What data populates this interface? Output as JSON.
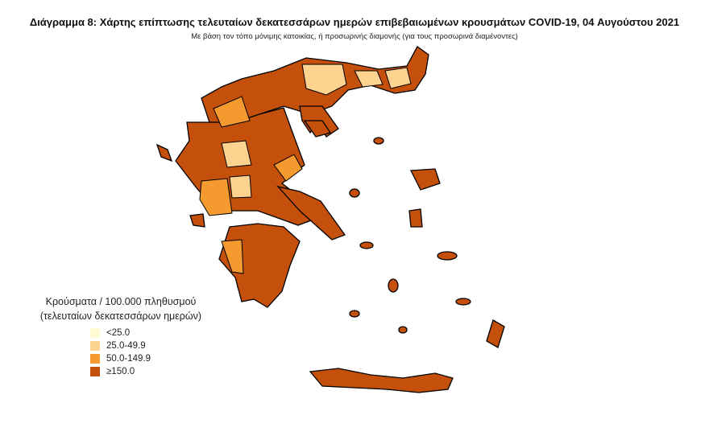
{
  "title": "Διάγραμμα 8: Χάρτης επίπτωσης τελευταίων δεκατεσσάρων ημερών επιβεβαιωμένων κρουσμάτων COVID-19, 04 Αυγούστου 2021",
  "subtitle": "Με βάση τον τόπο μόνιμης κατοικίας, ή προσωρινής διαμονής (για τους προσωρινά διαμένοντες)",
  "legend": {
    "title_line1": "Κρούσματα / 100.000 πληθυσμού",
    "title_line2": "(τελευταίων δεκατεσσάρων ημερών)",
    "items": [
      {
        "label": "<25.0",
        "color": "#fffbd2"
      },
      {
        "label": "25.0-49.9",
        "color": "#fdd38f"
      },
      {
        "label": "50.0-149.9",
        "color": "#f59a2f"
      },
      {
        "label": "≥150.0",
        "color": "#c4500c"
      }
    ]
  }
}
